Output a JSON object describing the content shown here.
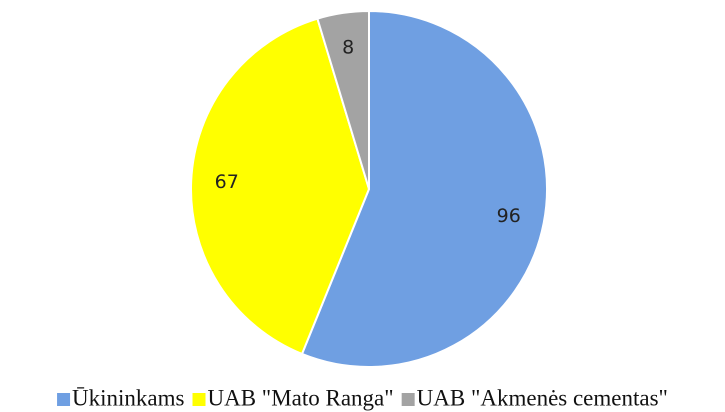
{
  "chart_data": {
    "type": "pie",
    "categories": [
      "Ūkininkams",
      "UAB \"Mato Ranga\"",
      "UAB \"Akmenės cementas\""
    ],
    "values": [
      96,
      67,
      8
    ],
    "colors": [
      "#6f9fe2",
      "#ffff00",
      "#a3a3a3"
    ],
    "legend": "bottom"
  }
}
